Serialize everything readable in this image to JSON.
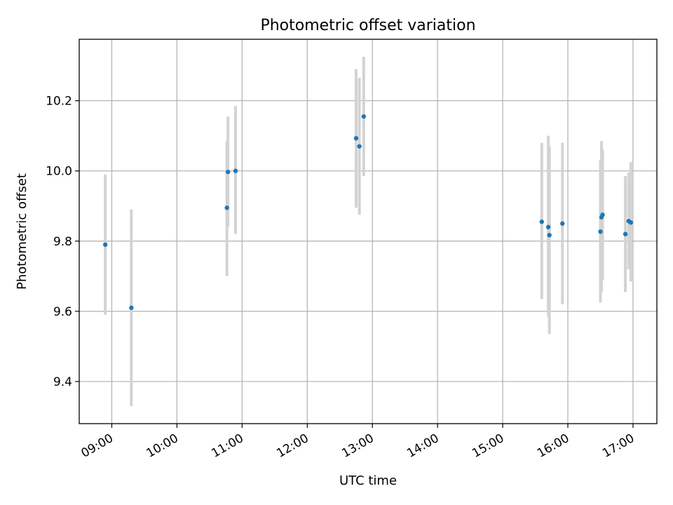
{
  "chart_data": {
    "type": "scatter",
    "title": "Photometric offset variation",
    "xlabel": "UTC time",
    "ylabel": "Photometric offset",
    "xlim": [
      "08:30",
      "17:22"
    ],
    "ylim": [
      9.28,
      10.375
    ],
    "x_ticks": [
      "09:00",
      "10:00",
      "11:00",
      "12:00",
      "13:00",
      "14:00",
      "15:00",
      "16:00",
      "17:00"
    ],
    "y_ticks": [
      9.4,
      9.6,
      9.8,
      10.0,
      10.2
    ],
    "grid": true,
    "marker_color": "#1f77b4",
    "errorbar_color": "#d3d3d3",
    "points": [
      {
        "x": "08:54",
        "y": 9.79,
        "err_low": 9.59,
        "err_high": 9.99
      },
      {
        "x": "09:18",
        "y": 9.61,
        "err_low": 9.33,
        "err_high": 9.89
      },
      {
        "x": "10:46",
        "y": 9.895,
        "err_low": 9.7,
        "err_high": 10.085
      },
      {
        "x": "10:47",
        "y": 9.997,
        "err_low": 9.84,
        "err_high": 10.155
      },
      {
        "x": "10:54",
        "y": 10.0,
        "err_low": 9.82,
        "err_high": 10.185
      },
      {
        "x": "12:45",
        "y": 10.093,
        "err_low": 9.895,
        "err_high": 10.29
      },
      {
        "x": "12:48",
        "y": 10.07,
        "err_low": 9.875,
        "err_high": 10.265
      },
      {
        "x": "12:52",
        "y": 10.155,
        "err_low": 9.985,
        "err_high": 10.325
      },
      {
        "x": "15:36",
        "y": 9.855,
        "err_low": 9.635,
        "err_high": 10.08
      },
      {
        "x": "15:42",
        "y": 9.84,
        "err_low": 9.585,
        "err_high": 10.1
      },
      {
        "x": "15:43",
        "y": 9.817,
        "err_low": 9.535,
        "err_high": 10.07
      },
      {
        "x": "15:55",
        "y": 9.85,
        "err_low": 9.62,
        "err_high": 10.08
      },
      {
        "x": "16:30",
        "y": 9.827,
        "err_low": 9.625,
        "err_high": 10.03
      },
      {
        "x": "16:31",
        "y": 9.868,
        "err_low": 9.655,
        "err_high": 10.085
      },
      {
        "x": "16:32",
        "y": 9.875,
        "err_low": 9.69,
        "err_high": 10.06
      },
      {
        "x": "16:53",
        "y": 9.82,
        "err_low": 9.655,
        "err_high": 9.985
      },
      {
        "x": "16:56",
        "y": 9.857,
        "err_low": 9.72,
        "err_high": 9.995
      },
      {
        "x": "16:58",
        "y": 9.853,
        "err_low": 9.685,
        "err_high": 10.025
      }
    ]
  }
}
